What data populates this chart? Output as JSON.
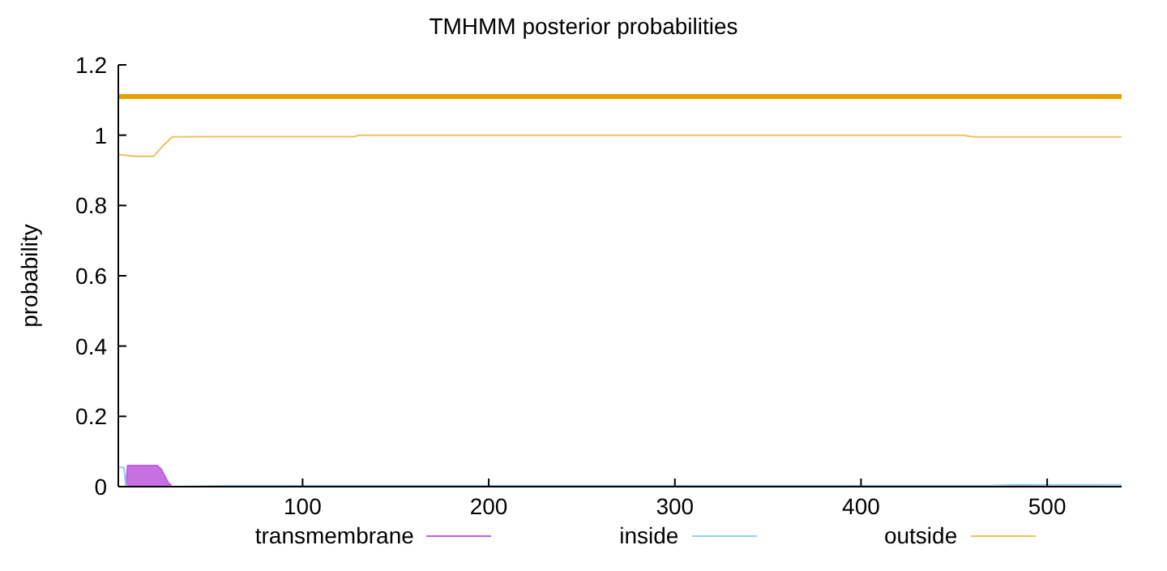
{
  "chart_data": {
    "type": "line",
    "title": "TMHMM posterior probabilities",
    "ylabel": "probability",
    "xlim": [
      1,
      540
    ],
    "xticks": [
      100,
      200,
      300,
      400,
      500
    ],
    "ylim": [
      0,
      1.2
    ],
    "yticks": [
      0,
      0.2,
      0.4,
      0.6,
      0.8,
      1,
      1.2
    ],
    "grid": false,
    "legend": "bottom",
    "marker": "none",
    "line_style": "solid",
    "ref_lines": [
      {
        "axis": "y",
        "value": 1.11,
        "label": null,
        "color": "#e69f00"
      }
    ],
    "series": [
      {
        "name": "transmembrane",
        "type": "area",
        "color": "#c060e0",
        "x": [
          1,
          5,
          6,
          10,
          15,
          20,
          22,
          24,
          26,
          28,
          30,
          60,
          200,
          400,
          460,
          480,
          500,
          540
        ],
        "values": [
          0,
          0,
          0.06,
          0.06,
          0.06,
          0.06,
          0.06,
          0.05,
          0.03,
          0.01,
          0,
          0,
          0,
          0,
          0,
          0.003,
          0.002,
          0
        ]
      },
      {
        "name": "inside",
        "color": "#90d0ee",
        "x": [
          1,
          4,
          5,
          6,
          30,
          60,
          200,
          400,
          470,
          480,
          500,
          540
        ],
        "values": [
          0.055,
          0.055,
          0.005,
          0,
          0,
          0.003,
          0.003,
          0.003,
          0.003,
          0.005,
          0.005,
          0.005
        ]
      },
      {
        "name": "outside",
        "color": "#f0c060",
        "x": [
          1,
          10,
          15,
          20,
          25,
          30,
          60,
          128,
          130,
          200,
          300,
          400,
          455,
          460,
          500,
          540
        ],
        "values": [
          0.945,
          0.94,
          0.94,
          0.94,
          0.97,
          0.995,
          0.996,
          0.996,
          1,
          1,
          1,
          1,
          1,
          0.995,
          0.995,
          0.995
        ]
      }
    ]
  }
}
